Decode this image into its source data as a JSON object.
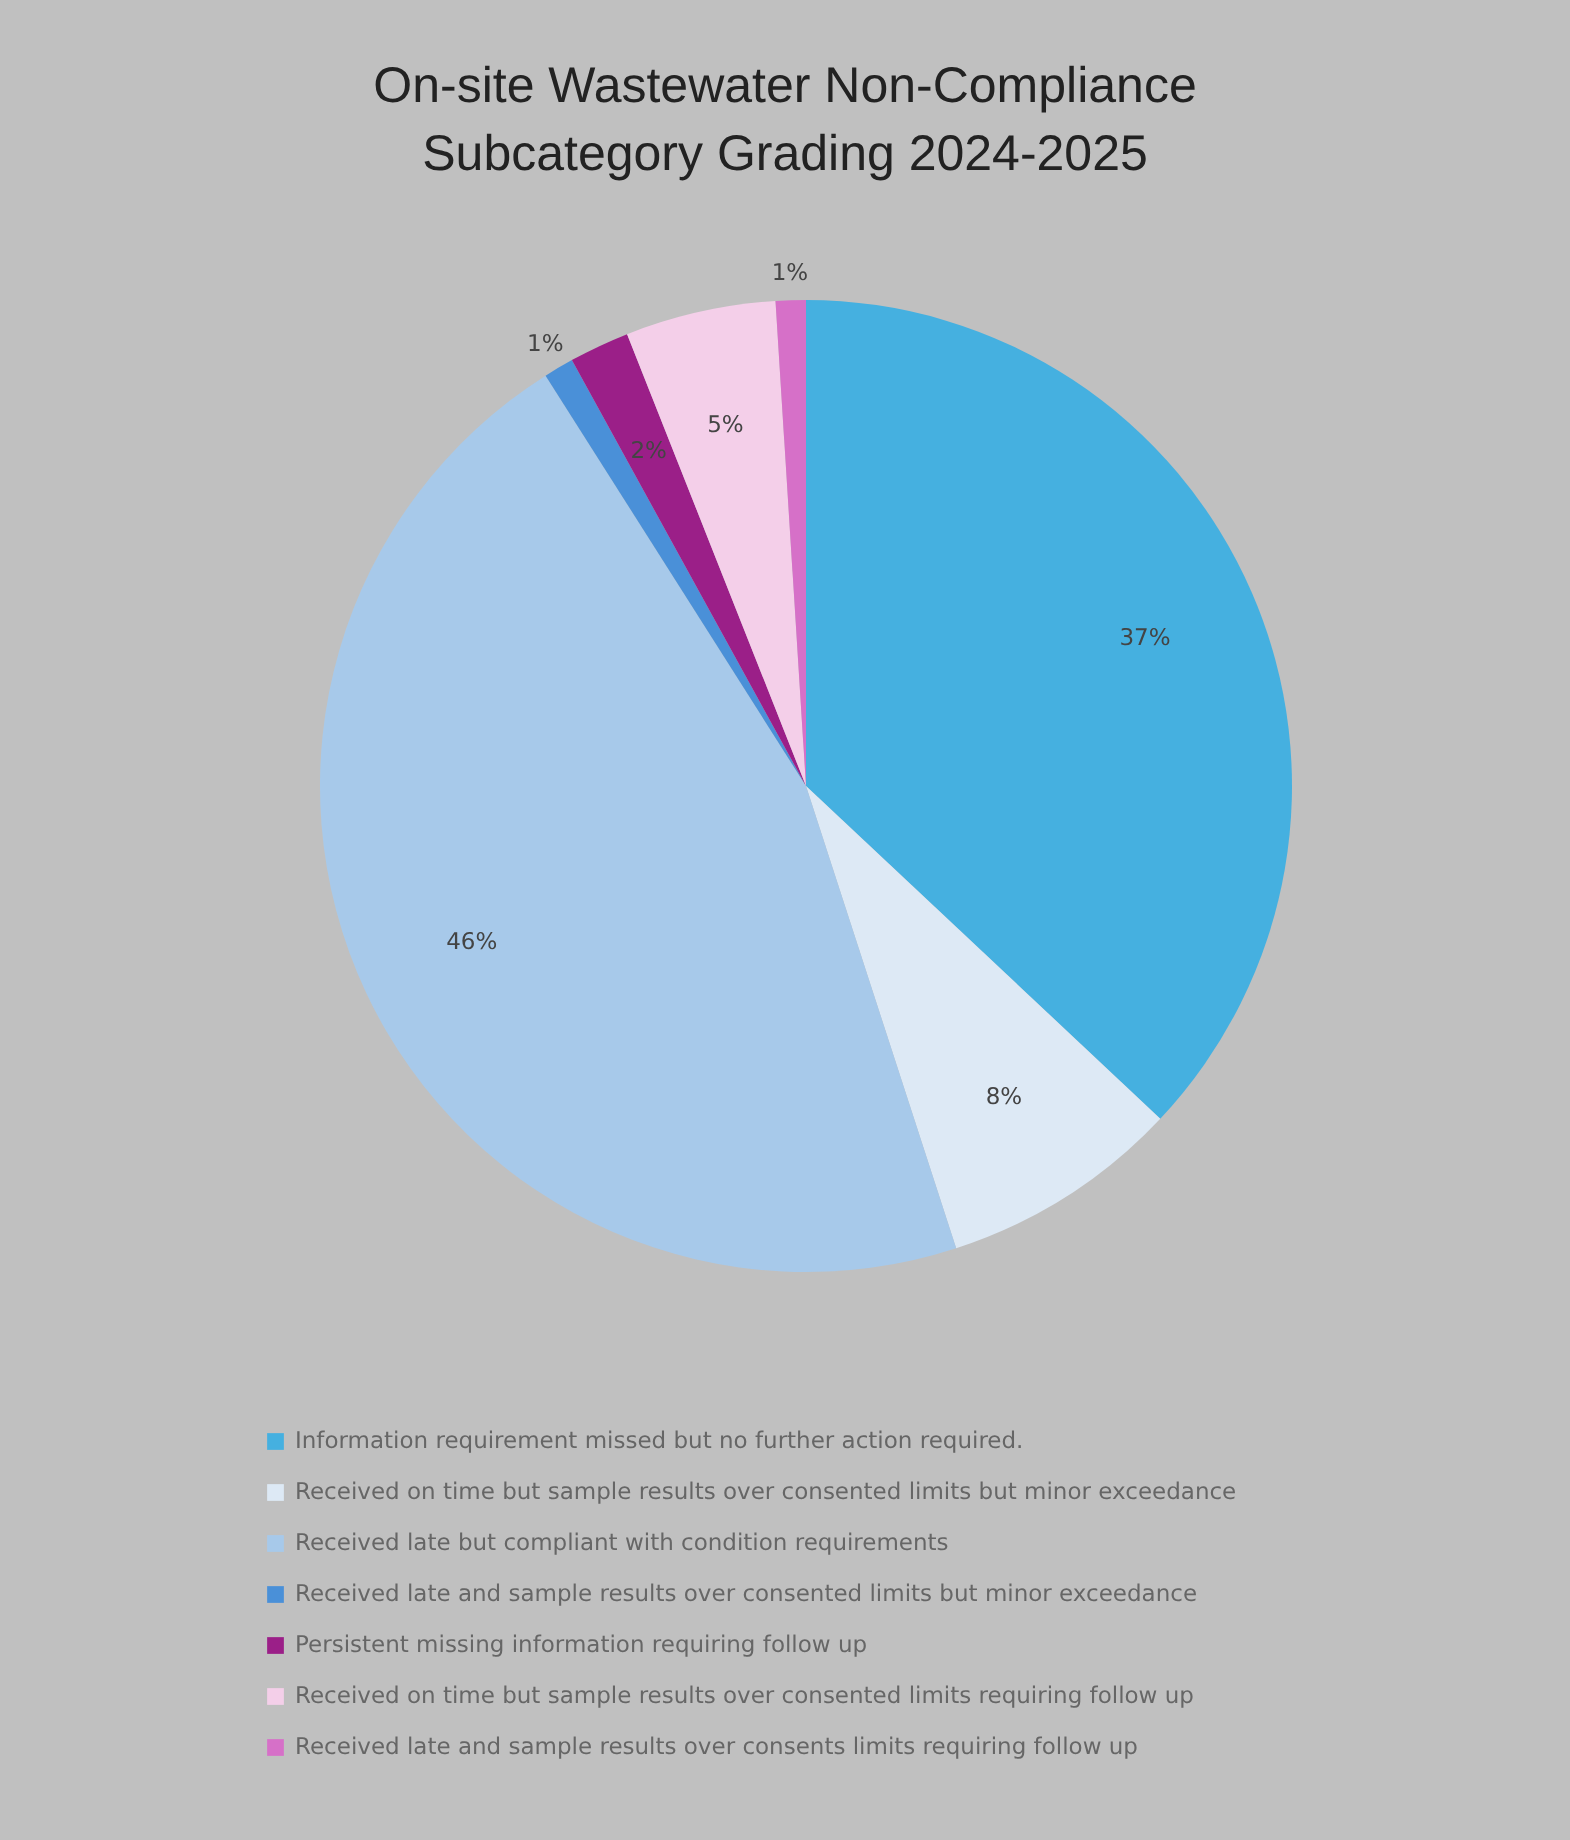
{
  "chart_data": {
    "type": "pie",
    "title": "On-site Wastewater Non-Compliance\nSubcategory Grading 2024-2025",
    "categories": [
      "Information requirement missed but no further action required.",
      "Received on time but sample results over consented limits but minor exceedance",
      "Received late but compliant with condition requirements",
      "Received late and sample results over consented limits but minor exceedance",
      "Persistent missing information requiring follow up",
      "Received on time but sample results over consented limits requiring follow up",
      "Received late and sample results over consents limits requiring follow up"
    ],
    "values": [
      37,
      8,
      46,
      1,
      2,
      5,
      1
    ],
    "value_labels": [
      "37%",
      "8%",
      "46%",
      "1%",
      "2%",
      "5%",
      "1%"
    ],
    "colors": [
      "#45b0e0",
      "#dde9f5",
      "#a7c9ea",
      "#4a90d8",
      "#9b1f88",
      "#f4cfe9",
      "#d670c8"
    ],
    "legend": "bottom"
  }
}
